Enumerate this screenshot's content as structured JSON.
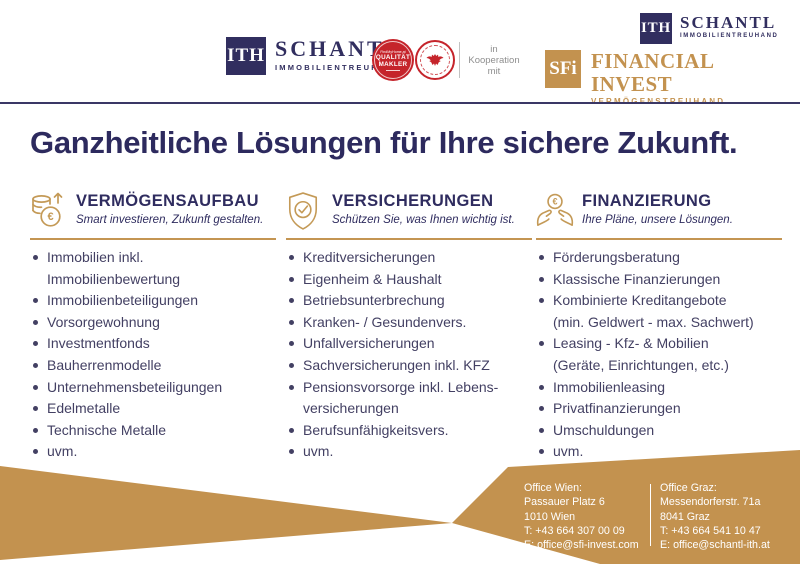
{
  "header": {
    "schantl_logo": {
      "abbr": "ITH",
      "name": "SCHANTL",
      "subtitle": "IMMOBILIENTREUHAND"
    },
    "quality_badge": {
      "line1": "FindMyHome.at",
      "line2": "QUALITÄT",
      "line3": "MAKLER"
    },
    "eagle_badge": {
      "icon": "austrian-eagle-badge"
    },
    "cooperation": {
      "line1": "in",
      "line2": "Kooperation",
      "line3": "mit"
    },
    "sfi_logo": {
      "abbr": "SFi",
      "name": "FINANCIAL INVEST",
      "subtitle": "VERMÖGENSTREUHAND"
    },
    "corner_logo": {
      "abbr": "ITH",
      "name": "SCHANTL",
      "subtitle": "IMMOBILIENTREUHAND"
    }
  },
  "title": "Ganzheitliche Lösungen für Ihre sichere Zukunft.",
  "columns": [
    {
      "icon": "coins-euro-growth-icon",
      "heading": "VERMÖGENSAUFBAU",
      "subtitle": "Smart investieren, Zukunft gestalten.",
      "items": [
        {
          "bullet": true,
          "text": "Immobilien inkl."
        },
        {
          "bullet": false,
          "text": "Immobilienbewertung"
        },
        {
          "bullet": true,
          "text": "Immobilienbeteiligungen"
        },
        {
          "bullet": true,
          "text": "Vorsorgewohnung"
        },
        {
          "bullet": true,
          "text": "Investmentfonds"
        },
        {
          "bullet": true,
          "text": "Bauherrenmodelle"
        },
        {
          "bullet": true,
          "text": "Unternehmensbeteiligungen"
        },
        {
          "bullet": true,
          "text": "Edelmetalle"
        },
        {
          "bullet": true,
          "text": "Technische Metalle"
        },
        {
          "bullet": true,
          "text": "uvm."
        }
      ]
    },
    {
      "icon": "shield-check-icon",
      "heading": "VERSICHERUNGEN",
      "subtitle": "Schützen Sie, was Ihnen wichtig ist.",
      "items": [
        {
          "bullet": true,
          "text": "Kreditversicherungen"
        },
        {
          "bullet": true,
          "text": "Eigenheim & Haushalt"
        },
        {
          "bullet": true,
          "text": "Betriebsunterbrechung"
        },
        {
          "bullet": true,
          "text": "Kranken- / Gesundenvers."
        },
        {
          "bullet": true,
          "text": "Unfallversicherungen"
        },
        {
          "bullet": true,
          "text": "Sachversicherungen inkl. KFZ"
        },
        {
          "bullet": true,
          "text": "Pensionsvorsorge inkl. Lebens-"
        },
        {
          "bullet": false,
          "text": "versicherungen"
        },
        {
          "bullet": true,
          "text": "Berufsunfähigkeitsvers."
        },
        {
          "bullet": true,
          "text": "uvm."
        }
      ]
    },
    {
      "icon": "hands-euro-icon",
      "heading": "FINANZIERUNG",
      "subtitle": "Ihre Pläne, unsere Lösungen.",
      "items": [
        {
          "bullet": true,
          "text": "Förderungsberatung"
        },
        {
          "bullet": true,
          "text": "Klassische Finanzierungen"
        },
        {
          "bullet": true,
          "text": "Kombinierte Kreditangebote"
        },
        {
          "bullet": false,
          "text": "(min. Geldwert - max. Sachwert)"
        },
        {
          "bullet": true,
          "text": "Leasing - Kfz- & Mobilien"
        },
        {
          "bullet": false,
          "text": "(Geräte, Einrichtungen, etc.)"
        },
        {
          "bullet": true,
          "text": "Immobilienleasing"
        },
        {
          "bullet": true,
          "text": "Privatfinanzierungen"
        },
        {
          "bullet": true,
          "text": "Umschuldungen"
        },
        {
          "bullet": true,
          "text": "uvm."
        }
      ]
    }
  ],
  "footer": {
    "offices": [
      {
        "lines": [
          "Office Wien:",
          "Passauer Platz 6",
          "1010 Wien",
          "T: +43 664 307 00 09",
          "E: office@sfi-invest.com"
        ]
      },
      {
        "lines": [
          "Office Graz:",
          "Messendorferstr. 71a",
          "8041 Graz",
          "T: +43 664 541 10 47",
          "E: office@schantl-ith.at"
        ]
      }
    ]
  },
  "colors": {
    "navy": "#2f2c5f",
    "gold": "#c3924f",
    "badge_red": "#c5242b",
    "list_text": "#434063"
  }
}
